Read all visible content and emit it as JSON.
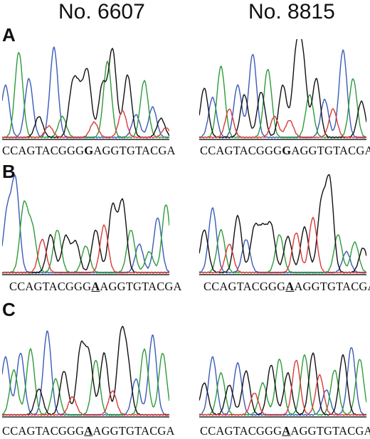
{
  "columns": [
    {
      "title": "No. 6607"
    },
    {
      "title": "No. 8815"
    }
  ],
  "rows": [
    {
      "label": "A",
      "panels": [
        {
          "seq_pre": "CCAGTACGGG",
          "seq_mut": "G",
          "seq_post": "AGGTGTACGA",
          "underlined": false
        },
        {
          "seq_pre": "CCAGTACGGG",
          "seq_mut": "G",
          "seq_post": "AGGTGTACGA",
          "underlined": false
        }
      ]
    },
    {
      "label": "B",
      "panels": [
        {
          "seq_pre": "CCAGTACGGG",
          "seq_mut": "A",
          "seq_post": "AGGTGTACGA",
          "underlined": true
        },
        {
          "seq_pre": "CCAGTACGGG",
          "seq_mut": "A",
          "seq_post": "AGGTGTACGA",
          "underlined": true
        }
      ]
    },
    {
      "label": "C",
      "panels": [
        {
          "seq_pre": "CCAGTACGGG",
          "seq_mut": "A",
          "seq_post": "AGGTGTACGA",
          "underlined": true
        },
        {
          "seq_pre": "CCAGTACGGG",
          "seq_mut": "A",
          "seq_post": "AGGTGTACGA",
          "underlined": true
        }
      ]
    }
  ],
  "trace_colors": {
    "C": "#3a5bb8",
    "A": "#2e9b3a",
    "G": "#111111",
    "T": "#d83a3a"
  }
}
